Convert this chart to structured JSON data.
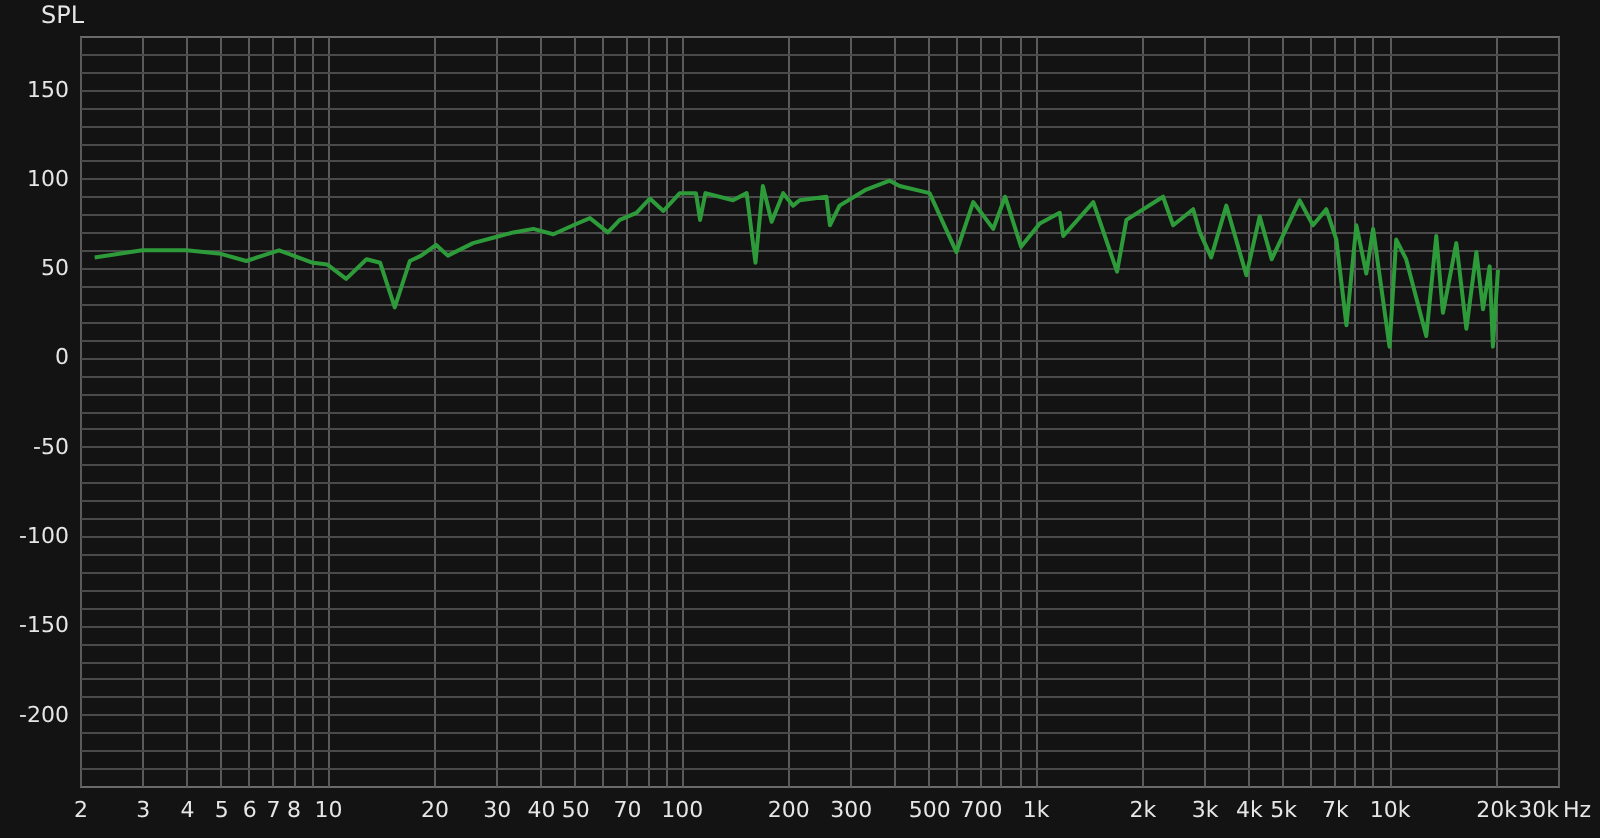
{
  "chart_data": {
    "type": "line",
    "ylabel": "SPL",
    "log": "x",
    "grid": true,
    "marker": "none",
    "line_style": "solid",
    "xlim": [
      2,
      30000
    ],
    "ylim": [
      -240,
      180
    ],
    "xticks": [
      2,
      3,
      4,
      5,
      6,
      7,
      8,
      {
        "value": 9,
        "label": null
      },
      10,
      20,
      30,
      40,
      50,
      {
        "value": 60,
        "label": null
      },
      70,
      {
        "value": 80,
        "label": null
      },
      {
        "value": 90,
        "label": null
      },
      100,
      200,
      300,
      {
        "value": 400,
        "label": null
      },
      500,
      {
        "value": 600,
        "label": null
      },
      700,
      {
        "value": 800,
        "label": null
      },
      {
        "value": 900,
        "label": null
      },
      {
        "value": 1000,
        "label": "1k"
      },
      {
        "value": 2000,
        "label": "2k"
      },
      {
        "value": 3000,
        "label": "3k"
      },
      {
        "value": 4000,
        "label": "4k"
      },
      {
        "value": 5000,
        "label": "5k"
      },
      {
        "value": 6000,
        "label": null
      },
      {
        "value": 7000,
        "label": "7k"
      },
      {
        "value": 8000,
        "label": null
      },
      {
        "value": 9000,
        "label": null
      },
      {
        "value": 10000,
        "label": "10k"
      },
      {
        "value": 20000,
        "label": "20k"
      },
      {
        "value": 30000,
        "label": "30k"
      }
    ],
    "xlabel": "Hz",
    "yticks": [
      {
        "value": -230,
        "label": null
      },
      {
        "value": -220,
        "label": null
      },
      {
        "value": -210,
        "label": null
      },
      -200,
      {
        "value": -190,
        "label": null
      },
      {
        "value": -180,
        "label": null
      },
      {
        "value": -170,
        "label": null
      },
      {
        "value": -160,
        "label": null
      },
      -150,
      {
        "value": -140,
        "label": null
      },
      {
        "value": -130,
        "label": null
      },
      {
        "value": -120,
        "label": null
      },
      {
        "value": -110,
        "label": null
      },
      -100,
      {
        "value": -90,
        "label": null
      },
      {
        "value": -80,
        "label": null
      },
      {
        "value": -70,
        "label": null
      },
      {
        "value": -60,
        "label": null
      },
      -50,
      {
        "value": -40,
        "label": null
      },
      {
        "value": -30,
        "label": null
      },
      {
        "value": -20,
        "label": null
      },
      {
        "value": -10,
        "label": null
      },
      0,
      {
        "value": 10,
        "label": null
      },
      {
        "value": 20,
        "label": null
      },
      {
        "value": 30,
        "label": null
      },
      {
        "value": 40,
        "label": null
      },
      50,
      {
        "value": 60,
        "label": null
      },
      {
        "value": 70,
        "label": null
      },
      {
        "value": 80,
        "label": null
      },
      {
        "value": 90,
        "label": null
      },
      100,
      {
        "value": 110,
        "label": null
      },
      {
        "value": 120,
        "label": null
      },
      {
        "value": 130,
        "label": null
      },
      {
        "value": 140,
        "label": null
      },
      150,
      {
        "value": 160,
        "label": null
      },
      {
        "value": 170,
        "label": null
      }
    ],
    "series": [
      {
        "color": "#2e9b3a",
        "x": [
          2.2,
          3.0,
          4.0,
          5.0,
          5.9,
          7.3,
          9.1,
          10,
          11.3,
          12.9,
          14.1,
          15.5,
          17.1,
          18.4,
          20.3,
          21.9,
          25.8,
          29.4,
          33.5,
          38.2,
          43.5,
          49.5,
          55.2,
          62,
          67,
          74.7,
          81.5,
          89,
          99,
          110,
          113,
          117,
          140,
          153,
          162,
          170,
          180,
          194,
          207,
          216,
          257,
          263,
          280,
          333,
          388,
          414,
          503,
          599,
          668,
          761,
          822,
          912,
          1030,
          1173,
          1200,
          1459,
          1703,
          1810,
          2297,
          2453,
          2794,
          2918,
          3142,
          3467,
          3950,
          4307,
          4658,
          5585,
          6093,
          6643,
          7093,
          7574,
          8080,
          8620,
          9010,
          10025,
          10470,
          11170,
          12730,
          13590,
          14190,
          15480,
          16530,
          17640,
          18420,
          19230,
          19640,
          20300
        ],
        "values": [
          56,
          60,
          60,
          58,
          54,
          60,
          53,
          52,
          44,
          55,
          53,
          28,
          54,
          57,
          63,
          57,
          64,
          67,
          70,
          72,
          69,
          74,
          78,
          70,
          77,
          81,
          89,
          82,
          92,
          92,
          77,
          92,
          88,
          92,
          53,
          96,
          76,
          92,
          85,
          88,
          90,
          74,
          85,
          94,
          99,
          96,
          92,
          59,
          87,
          72,
          90,
          62,
          75,
          81,
          68,
          87,
          48,
          77,
          90,
          74,
          83,
          70,
          56,
          85,
          46,
          79,
          55,
          88,
          74,
          83,
          66,
          18,
          74,
          47,
          72,
          6,
          66,
          55,
          12,
          68,
          25,
          64,
          16,
          59,
          27,
          51,
          6,
          49
        ]
      }
    ]
  }
}
